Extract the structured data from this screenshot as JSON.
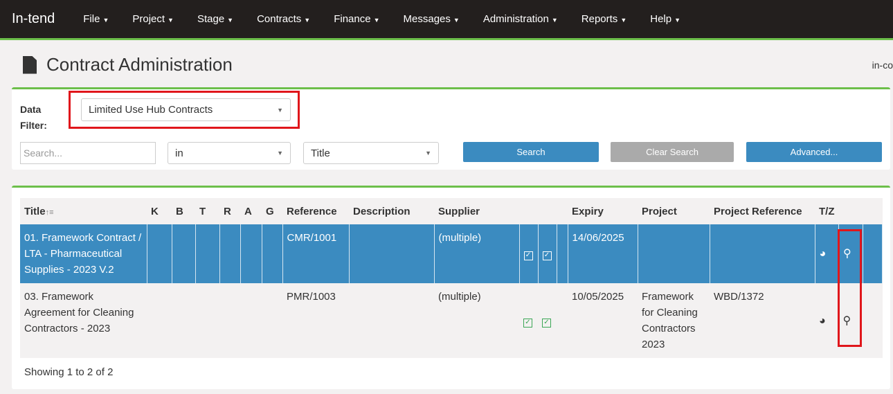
{
  "nav": {
    "brand": "In-tend",
    "items": [
      "File",
      "Project",
      "Stage",
      "Contracts",
      "Finance",
      "Messages",
      "Administration",
      "Reports",
      "Help"
    ]
  },
  "page": {
    "title": "Contract Administration",
    "corner_text": "in-co"
  },
  "filter": {
    "label_line1": "Data",
    "label_line2": "Filter:",
    "value": "Limited Use Hub Contracts",
    "search_placeholder": "Search...",
    "in_value": "in",
    "field_value": "Title",
    "search_label": "Search",
    "clear_label": "Clear Search",
    "advanced_label": "Advanced..."
  },
  "colors": {
    "accent": "#3b8bc0",
    "green": "#6cbf4a",
    "highlight": "#e0161b"
  },
  "table": {
    "headers": [
      "Title",
      "K",
      "B",
      "T",
      "R",
      "A",
      "G",
      "Reference",
      "Description",
      "Supplier",
      "",
      "",
      "",
      "Expiry",
      "Project",
      "Project Reference",
      "T/Z",
      ""
    ],
    "rows": [
      {
        "title": "01. Framework Contract / LTA - Pharmaceutical Supplies - 2023 V.2",
        "reference": "CMR/1001",
        "description": "",
        "supplier": "(multiple)",
        "expiry": "14/06/2025",
        "project": "",
        "project_reference": "",
        "selected": true
      },
      {
        "title": "03. Framework Agreement for Cleaning Contractors - 2023",
        "reference": "PMR/1003",
        "description": "",
        "supplier": "(multiple)",
        "expiry": "10/05/2025",
        "project": "Framework for Cleaning Contractors 2023",
        "project_reference": "WBD/1372",
        "selected": false
      }
    ],
    "footer": "Showing 1 to 2 of 2"
  }
}
